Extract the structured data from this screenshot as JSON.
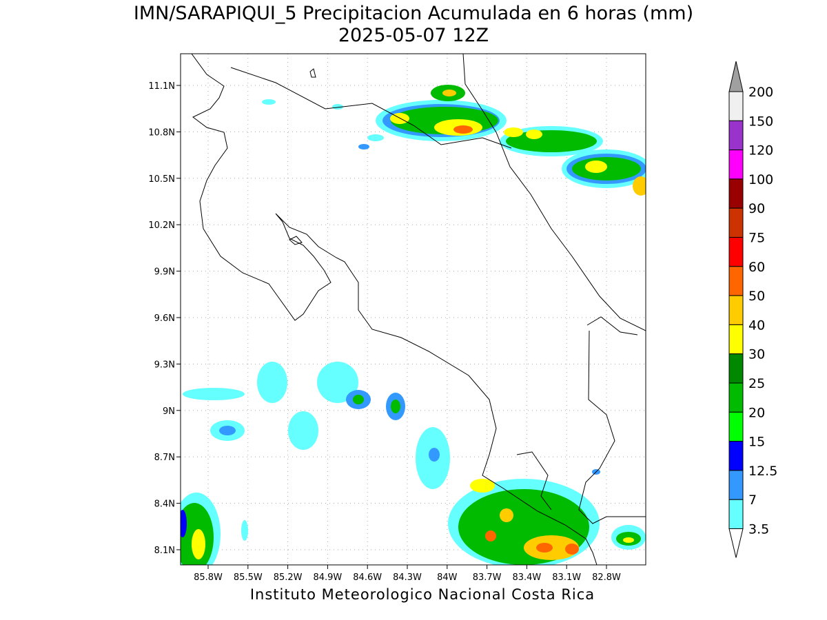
{
  "title": {
    "line1": "IMN/SARAPIQUI_5 Precipitacion Acumulada en 6 horas (mm)",
    "line2": "2025-05-07 12Z"
  },
  "map": {
    "lat_labels": [
      "11.1N",
      "10.8N",
      "10.5N",
      "10.2N",
      "9.9N",
      "9.6N",
      "9.3N",
      "9N",
      "8.7N",
      "8.4N",
      "8.1N"
    ],
    "lon_labels": [
      "85.8W",
      "85.5W",
      "85.2W",
      "84.9W",
      "84.6W",
      "84.3W",
      "84W",
      "83.7W",
      "83.4W",
      "83.1W",
      "82.8W"
    ]
  },
  "colorbar": {
    "labels": [
      "200",
      "150",
      "120",
      "100",
      "90",
      "75",
      "60",
      "50",
      "40",
      "30",
      "25",
      "20",
      "15",
      "12.5",
      "7",
      "3.5"
    ],
    "colors": [
      "#f0f0f0",
      "#9933cc",
      "#ff00ff",
      "#990000",
      "#cc3300",
      "#ff0000",
      "#ff6600",
      "#ffcc00",
      "#ffff00",
      "#008800",
      "#00bb00",
      "#00ff00",
      "#0000ff",
      "#3399ff",
      "#66ffff"
    ],
    "over_color": "#a0a0a0",
    "under_color": "#ffffff"
  },
  "footer": "Instituto Meteorologico Nacional Costa Rica"
}
